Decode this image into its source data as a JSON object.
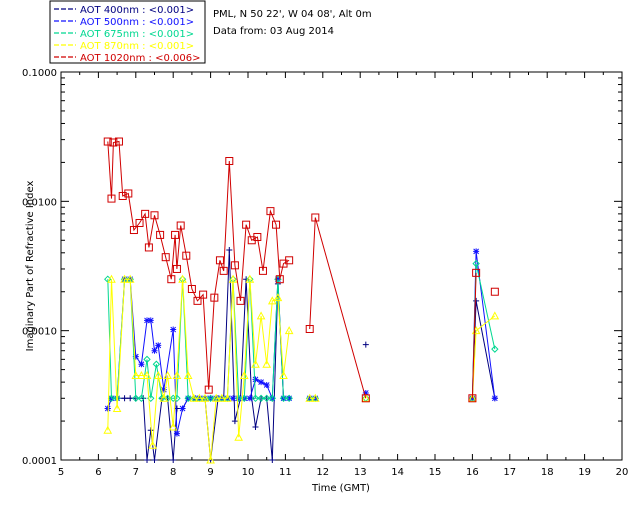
{
  "info": {
    "site": "PML, N 50 22', W 04 08', Alt 0m",
    "date": "Data from: 03 Aug 2014"
  },
  "legend": [
    {
      "label": "AOT  400nm : <0.001>",
      "color": "#000080"
    },
    {
      "label": "AOT  500nm : <0.001>",
      "color": "#1010ff"
    },
    {
      "label": "AOT  675nm : <0.001>",
      "color": "#00d890"
    },
    {
      "label": "AOT  870nm : <0.001>",
      "color": "#ffff00"
    },
    {
      "label": "AOT 1020nm : <0.006>",
      "color": "#d00000"
    }
  ],
  "chart_data": {
    "type": "line",
    "xlabel": "Time (GMT)",
    "ylabel": "Imaginary Part of Refractive Index",
    "xlim": [
      5,
      20
    ],
    "ylim": [
      0.0001,
      0.1
    ],
    "yscale": "log",
    "xticks": [
      5,
      6,
      7,
      8,
      9,
      10,
      11,
      12,
      13,
      14,
      15,
      16,
      17,
      18,
      19,
      20
    ],
    "yticks": [
      {
        "value": 0.0001,
        "label": "0.0001"
      },
      {
        "value": 0.001,
        "label": "0.0010"
      },
      {
        "value": 0.01,
        "label": "0.0100"
      },
      {
        "value": 0.1,
        "label": "0.1000"
      }
    ],
    "series": [
      {
        "name": "AOT  400nm : <0.001>",
        "color": "#000080",
        "marker": "plus",
        "points": [
          [
            6.25,
            0.00025
          ],
          [
            6.35,
            0.0003
          ],
          [
            6.5,
            0.0003
          ],
          [
            6.7,
            0.0003
          ],
          [
            6.85,
            0.0003
          ],
          [
            7.0,
            0.0003
          ],
          [
            7.2,
            0.0003
          ],
          [
            7.3,
            0.0001
          ],
          [
            7.4,
            0.00017
          ],
          [
            7.5,
            0.0001
          ],
          [
            7.7,
            0.0003
          ],
          [
            7.85,
            0.0003
          ],
          [
            8.0,
            0.0001
          ],
          [
            8.1,
            0.00025
          ],
          [
            8.25,
            0.00025
          ],
          [
            8.4,
            0.0003
          ],
          [
            8.55,
            0.0003
          ],
          [
            8.7,
            0.0003
          ],
          [
            8.85,
            0.0003
          ],
          [
            9.0,
            0.0001
          ],
          [
            9.2,
            0.0003
          ],
          [
            9.35,
            0.0003
          ],
          [
            9.5,
            0.0042
          ],
          [
            9.65,
            0.0002
          ],
          [
            9.8,
            0.0003
          ],
          [
            9.95,
            0.0025
          ],
          [
            10.1,
            0.0003
          ],
          [
            10.2,
            0.00018
          ],
          [
            10.35,
            0.0003
          ],
          [
            10.5,
            0.0003
          ],
          [
            10.65,
            0.0001
          ],
          [
            10.8,
            0.0023
          ],
          [
            10.95,
            0.0003
          ],
          [
            11.1,
            0.0003
          ],
          [
            11.65,
            0.0003
          ],
          [
            11.8,
            0.0003
          ],
          [
            13.15,
            0.00078
          ],
          [
            16.0,
            0.0003
          ],
          [
            16.1,
            0.0017
          ],
          [
            16.6,
            0.0003
          ]
        ],
        "breaks_after": [
          11.1,
          11.8,
          13.15
        ]
      },
      {
        "name": "AOT  500nm : <0.001>",
        "color": "#1010ff",
        "marker": "star",
        "points": [
          [
            6.25,
            0.00025
          ],
          [
            6.35,
            0.0003
          ],
          [
            6.5,
            0.0003
          ],
          [
            6.7,
            0.0025
          ],
          [
            6.85,
            0.0025
          ],
          [
            7.0,
            0.00063
          ],
          [
            7.15,
            0.00055
          ],
          [
            7.3,
            0.0012
          ],
          [
            7.4,
            0.0012
          ],
          [
            7.5,
            0.0007
          ],
          [
            7.6,
            0.00077
          ],
          [
            7.75,
            0.00035
          ],
          [
            8.0,
            0.00102
          ],
          [
            8.1,
            0.00016
          ],
          [
            8.25,
            0.00025
          ],
          [
            8.4,
            0.0003
          ],
          [
            8.6,
            0.0003
          ],
          [
            8.7,
            0.0003
          ],
          [
            8.85,
            0.0003
          ],
          [
            9.0,
            0.0003
          ],
          [
            9.15,
            0.0003
          ],
          [
            9.3,
            0.0003
          ],
          [
            9.45,
            0.0003
          ],
          [
            9.6,
            0.0003
          ],
          [
            9.75,
            0.0003
          ],
          [
            9.9,
            0.0003
          ],
          [
            10.05,
            0.0003
          ],
          [
            10.2,
            0.00042
          ],
          [
            10.35,
            0.0004
          ],
          [
            10.5,
            0.00038
          ],
          [
            10.65,
            0.0003
          ],
          [
            10.8,
            0.0025
          ],
          [
            10.95,
            0.0003
          ],
          [
            11.1,
            0.0003
          ],
          [
            11.65,
            0.0003
          ],
          [
            11.8,
            0.0003
          ],
          [
            13.15,
            0.00033
          ],
          [
            16.0,
            0.0003
          ],
          [
            16.1,
            0.0041
          ],
          [
            16.6,
            0.0003
          ]
        ],
        "breaks_after": [
          11.1,
          11.8,
          13.15
        ]
      },
      {
        "name": "AOT  675nm : <0.001>",
        "color": "#00d890",
        "marker": "diamond",
        "points": [
          [
            6.25,
            0.0025
          ],
          [
            6.35,
            0.0003
          ],
          [
            6.5,
            0.0003
          ],
          [
            6.7,
            0.0025
          ],
          [
            6.85,
            0.0025
          ],
          [
            7.0,
            0.0003
          ],
          [
            7.15,
            0.0003
          ],
          [
            7.3,
            0.0006
          ],
          [
            7.4,
            0.0003
          ],
          [
            7.55,
            0.00055
          ],
          [
            7.7,
            0.0003
          ],
          [
            7.85,
            0.0003
          ],
          [
            8.0,
            0.0003
          ],
          [
            8.1,
            0.0003
          ],
          [
            8.25,
            0.0025
          ],
          [
            8.4,
            0.0003
          ],
          [
            8.55,
            0.0003
          ],
          [
            8.7,
            0.0003
          ],
          [
            8.85,
            0.0003
          ],
          [
            9.0,
            0.0003
          ],
          [
            9.15,
            0.0003
          ],
          [
            9.3,
            0.0003
          ],
          [
            9.45,
            0.0003
          ],
          [
            9.6,
            0.0025
          ],
          [
            9.75,
            0.0003
          ],
          [
            9.9,
            0.0003
          ],
          [
            10.05,
            0.0025
          ],
          [
            10.2,
            0.0003
          ],
          [
            10.35,
            0.0003
          ],
          [
            10.5,
            0.0003
          ],
          [
            10.65,
            0.0003
          ],
          [
            10.8,
            0.0025
          ],
          [
            10.95,
            0.0003
          ],
          [
            11.1,
            0.0003
          ],
          [
            11.65,
            0.0003
          ],
          [
            11.8,
            0.0003
          ],
          [
            13.15,
            0.0003
          ],
          [
            16.0,
            0.0003
          ],
          [
            16.1,
            0.0033
          ],
          [
            16.6,
            0.00072
          ]
        ],
        "breaks_after": [
          11.1,
          11.8,
          13.15
        ]
      },
      {
        "name": "AOT  870nm : <0.001>",
        "color": "#ffff00",
        "marker": "triangle",
        "points": [
          [
            6.25,
            0.00017
          ],
          [
            6.35,
            0.0025
          ],
          [
            6.5,
            0.00025
          ],
          [
            6.7,
            0.0025
          ],
          [
            6.85,
            0.0025
          ],
          [
            7.0,
            0.00045
          ],
          [
            7.15,
            0.00045
          ],
          [
            7.3,
            0.00045
          ],
          [
            7.45,
            0.00013
          ],
          [
            7.6,
            0.00045
          ],
          [
            7.75,
            0.0003
          ],
          [
            7.85,
            0.00045
          ],
          [
            8.0,
            0.00018
          ],
          [
            8.1,
            0.00045
          ],
          [
            8.25,
            0.0025
          ],
          [
            8.4,
            0.00045
          ],
          [
            8.55,
            0.0003
          ],
          [
            8.7,
            0.0003
          ],
          [
            8.85,
            0.0003
          ],
          [
            9.0,
            0.0001
          ],
          [
            9.15,
            0.0003
          ],
          [
            9.3,
            0.0003
          ],
          [
            9.45,
            0.0003
          ],
          [
            9.6,
            0.0025
          ],
          [
            9.75,
            0.00015
          ],
          [
            9.9,
            0.00045
          ],
          [
            10.05,
            0.0025
          ],
          [
            10.2,
            0.00055
          ],
          [
            10.35,
            0.0013
          ],
          [
            10.5,
            0.00055
          ],
          [
            10.65,
            0.0017
          ],
          [
            10.8,
            0.0018
          ],
          [
            10.95,
            0.00045
          ],
          [
            11.1,
            0.001
          ],
          [
            11.65,
            0.0003
          ],
          [
            11.8,
            0.0003
          ],
          [
            13.15,
            0.0003
          ],
          [
            16.0,
            0.0003
          ],
          [
            16.1,
            0.001
          ],
          [
            16.6,
            0.0013
          ]
        ],
        "breaks_after": [
          11.1,
          11.8,
          13.15
        ]
      },
      {
        "name": "AOT 1020nm : <0.006>",
        "color": "#d00000",
        "marker": "square",
        "points": [
          [
            6.25,
            0.029
          ],
          [
            6.35,
            0.0105
          ],
          [
            6.4,
            0.0285
          ],
          [
            6.55,
            0.029
          ],
          [
            6.65,
            0.011
          ],
          [
            6.8,
            0.0115
          ],
          [
            6.95,
            0.006
          ],
          [
            7.1,
            0.0068
          ],
          [
            7.25,
            0.008
          ],
          [
            7.35,
            0.0044
          ],
          [
            7.5,
            0.0078
          ],
          [
            7.65,
            0.0055
          ],
          [
            7.8,
            0.0037
          ],
          [
            7.95,
            0.0025
          ],
          [
            8.05,
            0.0055
          ],
          [
            8.1,
            0.003
          ],
          [
            8.2,
            0.0065
          ],
          [
            8.35,
            0.0038
          ],
          [
            8.5,
            0.0021
          ],
          [
            8.65,
            0.0017
          ],
          [
            8.8,
            0.0019
          ],
          [
            8.95,
            0.00035
          ],
          [
            9.1,
            0.0018
          ],
          [
            9.25,
            0.0035
          ],
          [
            9.35,
            0.0029
          ],
          [
            9.5,
            0.0205
          ],
          [
            9.65,
            0.0032
          ],
          [
            9.8,
            0.0017
          ],
          [
            9.95,
            0.0066
          ],
          [
            10.1,
            0.005
          ],
          [
            10.25,
            0.0053
          ],
          [
            10.4,
            0.0029
          ],
          [
            10.6,
            0.0084
          ],
          [
            10.75,
            0.0066
          ],
          [
            10.85,
            0.0025
          ],
          [
            10.95,
            0.0033
          ],
          [
            11.1,
            0.0035
          ],
          [
            11.65,
            0.00103
          ],
          [
            11.8,
            0.0075
          ],
          [
            13.15,
            0.0003
          ],
          [
            16.0,
            0.0003
          ],
          [
            16.1,
            0.0028
          ],
          [
            16.6,
            0.002
          ]
        ],
        "breaks_after": [
          11.1,
          13.15,
          16.1
        ]
      }
    ]
  }
}
